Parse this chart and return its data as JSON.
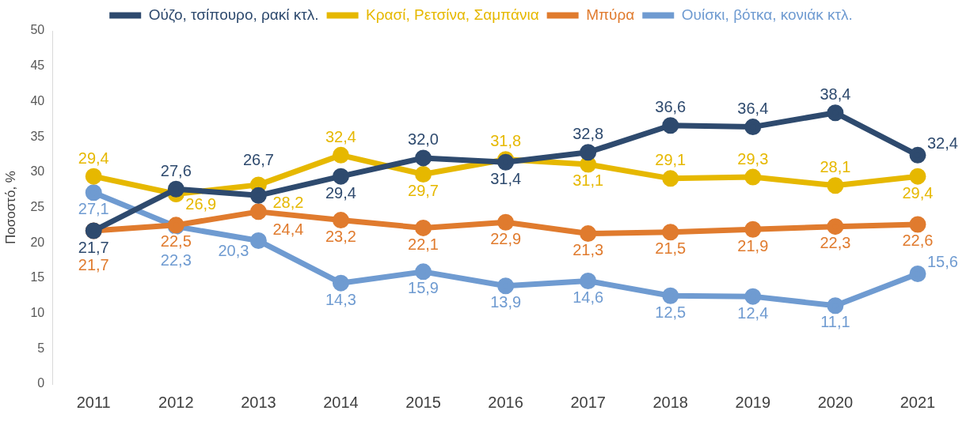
{
  "chart_data": {
    "type": "line",
    "ylabel": "Ποσοστό, %",
    "categories": [
      "2011",
      "2012",
      "2013",
      "2014",
      "2015",
      "2016",
      "2017",
      "2018",
      "2019",
      "2020",
      "2021"
    ],
    "series": [
      {
        "name": "Ούζο, τσίπουρο, ρακί κτλ.",
        "color": "#2e4a6e",
        "values": [
          21.7,
          27.6,
          26.7,
          29.4,
          32.0,
          31.4,
          32.8,
          36.6,
          36.4,
          38.4,
          32.4
        ],
        "value_labels": [
          "21,7",
          "27,6",
          "26,7",
          "29,4",
          "32,0",
          "31,4",
          "32,8",
          "36,6",
          "36,4",
          "38,4",
          "32,4"
        ]
      },
      {
        "name": "Κρασί, Ρετσίνα, Σαμπάνια",
        "color": "#e6b800",
        "values": [
          29.4,
          26.9,
          28.2,
          32.4,
          29.7,
          31.8,
          31.1,
          29.1,
          29.3,
          28.1,
          29.4
        ],
        "value_labels": [
          "29,4",
          "26,9",
          "28,2",
          "32,4",
          "29,7",
          "31,8",
          "31,1",
          "29,1",
          "29,3",
          "28,1",
          "29,4"
        ]
      },
      {
        "name": "Μπύρα",
        "color": "#e07b2e",
        "values": [
          21.7,
          22.5,
          24.4,
          23.2,
          22.1,
          22.9,
          21.3,
          21.5,
          21.9,
          22.3,
          22.6
        ],
        "value_labels": [
          "21,7",
          "22,5",
          "24,4",
          "23,2",
          "22,1",
          "22,9",
          "21,3",
          "21,5",
          "21,9",
          "22,3",
          "22,6"
        ]
      },
      {
        "name": "Ουίσκι, βότκα, κονιάκ κτλ.",
        "color": "#6f9bd1",
        "values": [
          27.1,
          22.3,
          20.3,
          14.3,
          15.9,
          13.9,
          14.6,
          12.5,
          12.4,
          11.1,
          15.6
        ],
        "value_labels": [
          "27,1",
          "22,3",
          "20,3",
          "14,3",
          "15,9",
          "13,9",
          "14,6",
          "12,5",
          "12,4",
          "11,1",
          "15,6"
        ]
      }
    ],
    "ylim": [
      0,
      50
    ],
    "yticks": [
      0,
      5,
      10,
      15,
      20,
      25,
      30,
      35,
      40,
      45,
      50
    ],
    "grid": false,
    "legend": "top",
    "marker": "circle",
    "line_style": "solid",
    "data_labels": true
  }
}
